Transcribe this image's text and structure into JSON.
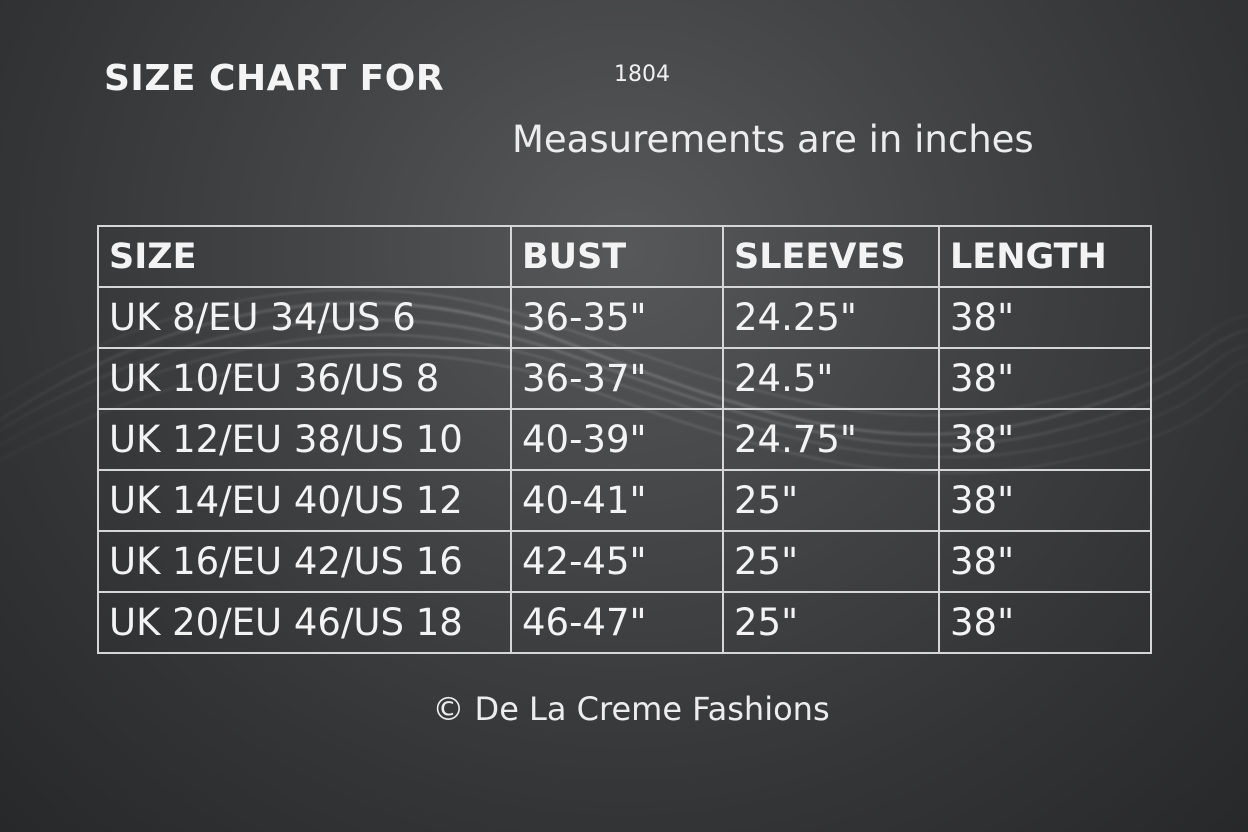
{
  "title": "SIZE CHART FOR",
  "product_code": "1804",
  "subtitle": "Measurements are in inches",
  "table": {
    "headers": [
      "SIZE",
      "BUST",
      "SLEEVES",
      "LENGTH"
    ],
    "rows": [
      [
        "UK 8/EU 34/US 6",
        "36-35\"",
        "24.25\"",
        "38\""
      ],
      [
        "UK 10/EU 36/US 8",
        "36-37\"",
        "24.5\"",
        "38\""
      ],
      [
        "UK 12/EU 38/US 10",
        "40-39\"",
        "24.75\"",
        "38\""
      ],
      [
        "UK 14/EU 40/US 12",
        "40-41\"",
        "25\"",
        "38\""
      ],
      [
        "UK 16/EU 42/US 16",
        "42-45\"",
        "25\"",
        "38\""
      ],
      [
        "UK 20/EU 46/US 18",
        "46-47\"",
        "25\"",
        "38\""
      ]
    ]
  },
  "copyright": "© De La Creme Fashions",
  "colors": {
    "background": "#3a3b3d",
    "text": "#f2f2f2",
    "grid_lines": "#d6d6d6"
  }
}
